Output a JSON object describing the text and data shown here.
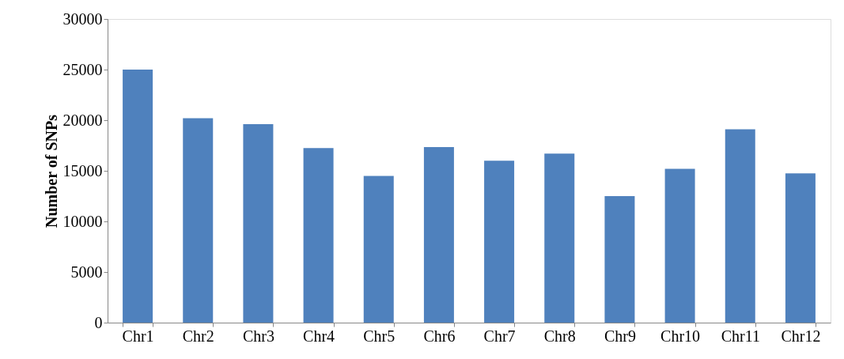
{
  "chart_data": {
    "type": "bar",
    "ylabel": "Number of SNPs",
    "categories": [
      "Chr1",
      "Chr2",
      "Chr3",
      "Chr4",
      "Chr5",
      "Chr6",
      "Chr7",
      "Chr8",
      "Chr9",
      "Chr10",
      "Chr11",
      "Chr12"
    ],
    "values": [
      25000,
      20200,
      19600,
      17250,
      14500,
      17350,
      16000,
      16700,
      12500,
      15200,
      19100,
      14750
    ],
    "color": "#4f81bd",
    "ylim": [
      0,
      30000
    ],
    "yticks": [
      0,
      5000,
      10000,
      15000,
      20000,
      25000,
      30000
    ],
    "grid": false
  }
}
